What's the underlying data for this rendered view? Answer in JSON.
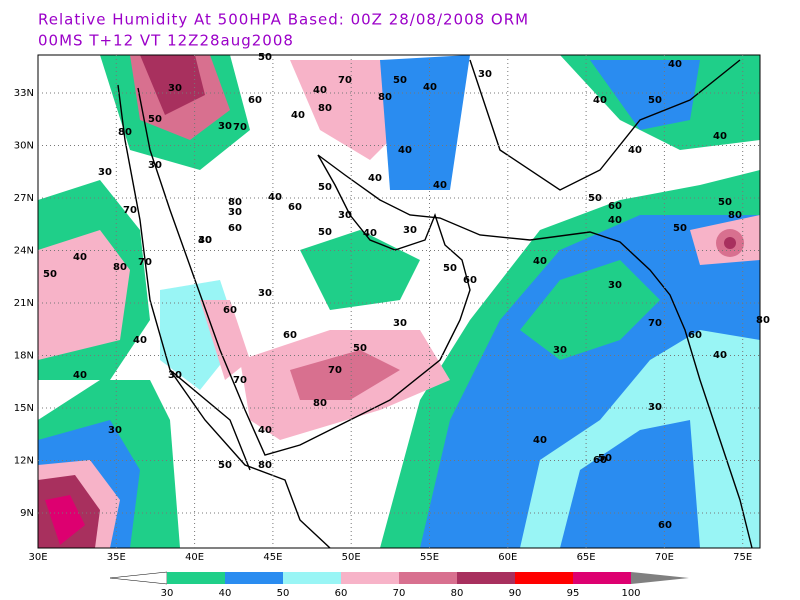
{
  "header": {
    "line1": "Relative Humidity At 500HPA   Based: 00Z  28/08/2008  ORM",
    "line2": "00MS  T+12 VT 12Z28aug2008"
  },
  "map": {
    "lon_labels": [
      "30E",
      "35E",
      "40E",
      "45E",
      "50E",
      "55E",
      "60E",
      "65E",
      "70E",
      "75E"
    ],
    "lat_labels": [
      "33N",
      "30N",
      "27N",
      "24N",
      "21N",
      "18N",
      "15N",
      "12N",
      "9N"
    ]
  },
  "colorbar": {
    "labels": [
      "30",
      "40",
      "50",
      "60",
      "70",
      "80",
      "90",
      "95",
      "100"
    ],
    "colors": [
      "#1fcf89",
      "#2a8cf0",
      "#99f5f5",
      "#f7b3c8",
      "#d8708f",
      "#a8305e",
      "#ff0000",
      "#dd0070"
    ]
  },
  "contour_labels": [
    "50",
    "30",
    "30",
    "40",
    "70",
    "50",
    "40",
    "80",
    "60",
    "80",
    "40",
    "50",
    "70",
    "30",
    "40",
    "80",
    "30",
    "40",
    "30",
    "50",
    "80",
    "40",
    "60",
    "30",
    "40",
    "70",
    "30",
    "40",
    "60",
    "30",
    "50",
    "50",
    "40",
    "30",
    "80",
    "70",
    "60",
    "50",
    "60",
    "30",
    "70",
    "50",
    "40",
    "30",
    "60",
    "40",
    "30",
    "40",
    "30",
    "50",
    "80",
    "40",
    "50",
    "60",
    "40",
    "30",
    "40",
    "50",
    "30",
    "60",
    "40",
    "50",
    "80",
    "50",
    "80",
    "60",
    "70",
    "80",
    "40",
    "70",
    "30",
    "40",
    "50",
    "40",
    "40",
    "40",
    "60"
  ]
}
